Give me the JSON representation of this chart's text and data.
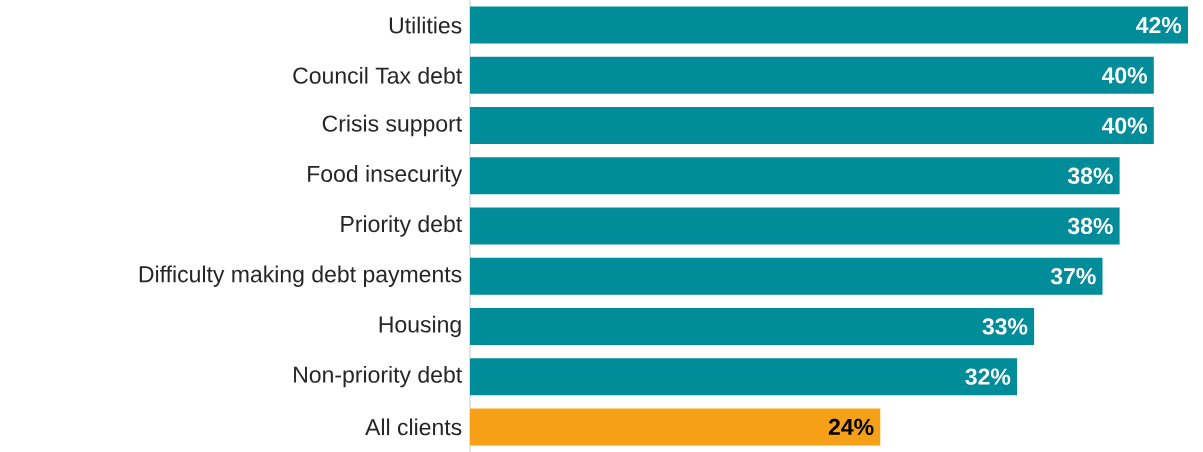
{
  "chart_data": {
    "type": "bar",
    "orientation": "horizontal",
    "categories": [
      "Utilities",
      "Council Tax debt",
      "Crisis support",
      "Food insecurity",
      "Priority debt",
      "Difficulty making debt payments",
      "Housing",
      "Non-priority debt",
      "All clients"
    ],
    "values": [
      42,
      40,
      40,
      38,
      38,
      37,
      33,
      32,
      24
    ],
    "value_labels": [
      "42%",
      "40%",
      "40%",
      "38%",
      "38%",
      "37%",
      "33%",
      "32%",
      "24%"
    ],
    "colors": [
      "#008c99",
      "#008c99",
      "#008c99",
      "#008c99",
      "#008c99",
      "#008c99",
      "#008c99",
      "#008c99",
      "#f5a016"
    ]
  }
}
